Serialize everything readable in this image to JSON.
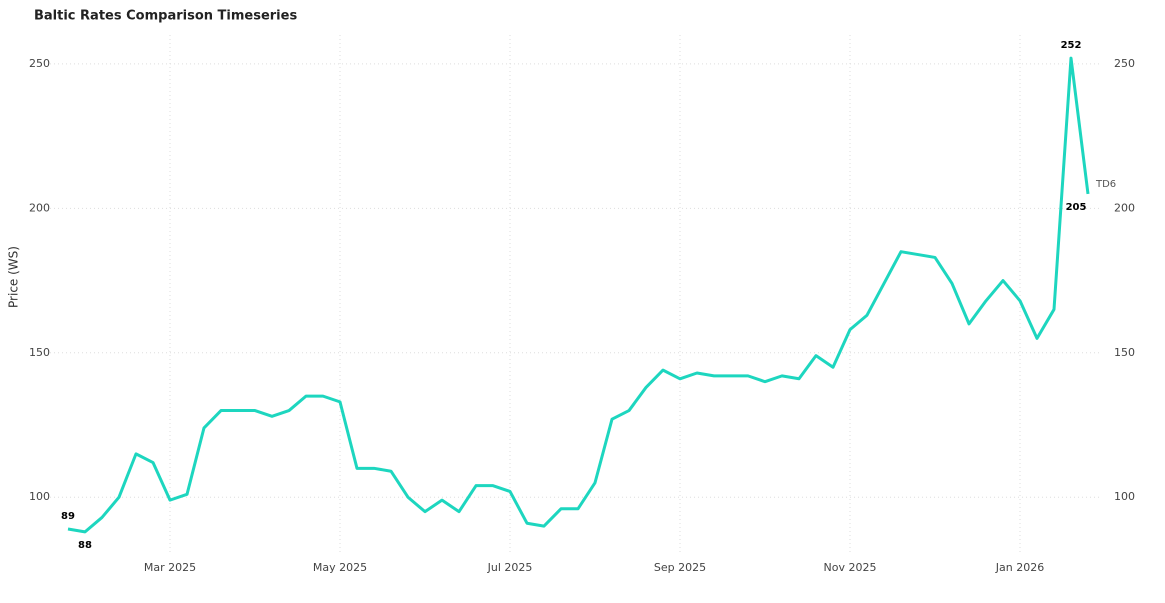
{
  "chart_data": {
    "type": "line",
    "title": "Baltic Rates Comparison Timeseries",
    "y_label": "Price (WS)",
    "x": [
      "2025-01",
      "2025-02",
      "2025-02",
      "2025-02",
      "2025-02",
      "2025-02",
      "2025-03",
      "2025-03",
      "2025-03",
      "2025-03",
      "2025-03",
      "2025-04",
      "2025-04",
      "2025-04",
      "2025-04",
      "2025-04",
      "2025-05",
      "2025-05",
      "2025-05",
      "2025-05",
      "2025-05",
      "2025-06",
      "2025-06",
      "2025-06",
      "2025-06",
      "2025-06",
      "2025-07",
      "2025-07",
      "2025-07",
      "2025-07",
      "2025-07",
      "2025-08",
      "2025-08",
      "2025-08",
      "2025-08",
      "2025-08",
      "2025-09",
      "2025-09",
      "2025-09",
      "2025-09",
      "2025-09",
      "2025-10",
      "2025-10",
      "2025-10",
      "2025-10",
      "2025-10",
      "2025-11",
      "2025-11",
      "2025-11",
      "2025-11",
      "2025-11",
      "2025-12",
      "2025-12",
      "2025-12",
      "2025-12",
      "2025-12",
      "2026-01",
      "2026-01",
      "2026-01",
      "2026-01",
      "2026-01"
    ],
    "series": [
      {
        "name": "TD6",
        "color": "#1dd6bf",
        "values": [
          89,
          88,
          93,
          100,
          115,
          112,
          99,
          101,
          124,
          130,
          130,
          130,
          128,
          130,
          135,
          135,
          133,
          110,
          110,
          109,
          100,
          95,
          99,
          95,
          104,
          104,
          102,
          91,
          90,
          96,
          96,
          105,
          127,
          130,
          138,
          144,
          141,
          143,
          142,
          142,
          142,
          140,
          142,
          141,
          149,
          145,
          158,
          163,
          174,
          185,
          184,
          183,
          174,
          160,
          168,
          175,
          168,
          155,
          165,
          252,
          205
        ]
      }
    ],
    "labelled_points": [
      0,
      1,
      59,
      60
    ],
    "ylim": [
      80,
      260
    ],
    "yticks": [
      100,
      150,
      200,
      250
    ],
    "xticks": [
      {
        "value": "2025-03",
        "label": "Mar 2025"
      },
      {
        "value": "2025-05",
        "label": "May 2025"
      },
      {
        "value": "2025-07",
        "label": "Jul 2025"
      },
      {
        "value": "2025-09",
        "label": "Sep 2025"
      },
      {
        "value": "2025-11",
        "label": "Nov 2025"
      },
      {
        "value": "2026-01",
        "label": "Jan 2026"
      }
    ],
    "grid": true
  }
}
